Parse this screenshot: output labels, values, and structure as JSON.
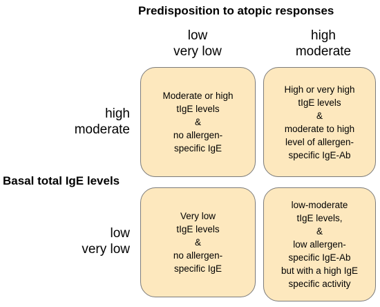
{
  "top_title": "Predisposition to atopic responses",
  "columns": [
    {
      "line1": "low",
      "line2": "very low"
    },
    {
      "line1": "high",
      "line2": "moderate"
    }
  ],
  "rows": [
    {
      "line1": "high",
      "line2": "moderate"
    },
    {
      "line1": "low",
      "line2": "very low"
    }
  ],
  "side_title": "Basal total IgE levels",
  "cells": {
    "top_left": "Moderate or high\ntIgE levels\n&\nno allergen-\nspecific IgE",
    "top_right": "High or very high\ntIgE levels\n&\nmoderate to  high\nlevel of allergen-\nspecific IgE-Ab",
    "bottom_left": "Very low\ntIgE levels\n&\nno allergen-\nspecific IgE",
    "bottom_right": "low-moderate\ntIgE levels,\n&\nlow allergen-\nspecific IgE-Ab\nbut with a high IgE\nspecific activity"
  }
}
